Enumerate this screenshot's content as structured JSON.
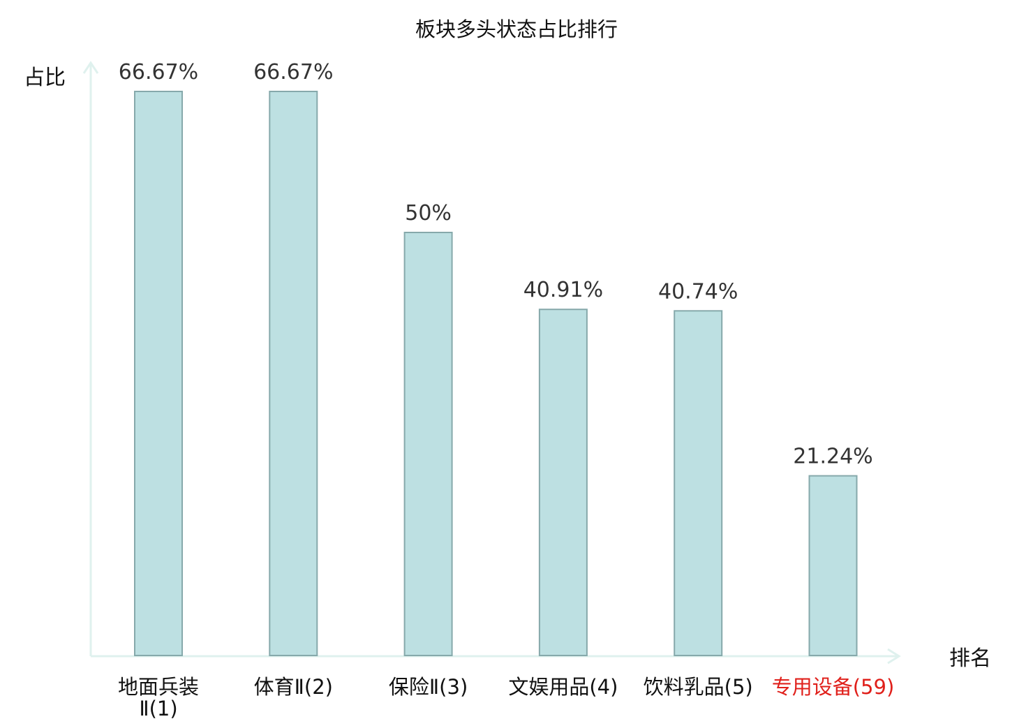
{
  "chart_data": {
    "type": "bar",
    "title": "板块多头状态占比排行",
    "ylabel": "占比",
    "xlabel": "排名",
    "ylim": [
      0,
      70
    ],
    "categories": [
      {
        "lines": [
          "地面兵装",
          "Ⅱ(1)"
        ],
        "highlight": false
      },
      {
        "lines": [
          "体育Ⅱ(2)"
        ],
        "highlight": false
      },
      {
        "lines": [
          "保险Ⅱ(3)"
        ],
        "highlight": false
      },
      {
        "lines": [
          "文娱用品(4)"
        ],
        "highlight": false
      },
      {
        "lines": [
          "饮料乳品(5)"
        ],
        "highlight": false
      },
      {
        "lines": [
          "专用设备(59)"
        ],
        "highlight": true
      }
    ],
    "values": [
      66.67,
      66.67,
      50,
      40.91,
      40.74,
      21.24
    ],
    "value_labels": [
      "66.67%",
      "66.67%",
      "50%",
      "40.91%",
      "40.74%",
      "21.24%"
    ],
    "colors": {
      "bar_fill": "#bde0e2",
      "bar_stroke": "#86a9ab",
      "axis": "#dff1ee",
      "tick_text": "#111111",
      "highlight_text": "#e0201b"
    }
  }
}
